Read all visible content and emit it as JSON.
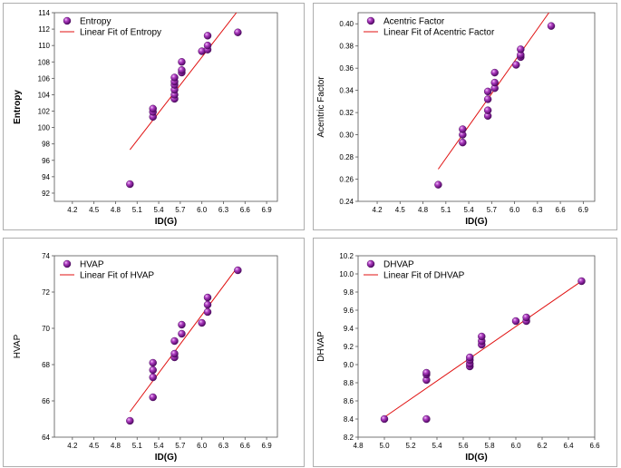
{
  "colors": {
    "marker": "#7a0f8c",
    "marker_highlight": "#e7a9f2",
    "fit_line": "#e01010",
    "frame": "#555555",
    "panel_border": "#9a9a9a"
  },
  "chart_data": [
    {
      "type": "scatter",
      "panel": "top-left",
      "xlabel": "ID(G)",
      "ylabel": "Entropy",
      "ylabel_bold": true,
      "xlim": [
        3.95,
        7.05
      ],
      "ylim": [
        91,
        114
      ],
      "xticks": [
        "4.2",
        "4.5",
        "4.8",
        "5.1",
        "5.4",
        "5.7",
        "6.0",
        "6.3",
        "6.6",
        "6.9"
      ],
      "yticks": [
        "92",
        "94",
        "96",
        "98",
        "100",
        "102",
        "104",
        "106",
        "108",
        "110",
        "112",
        "114"
      ],
      "legend": {
        "position": "top-left",
        "points_label": "Entropy",
        "line_label": "Linear Fit of Entropy"
      },
      "points": [
        [
          5.0,
          93.1
        ],
        [
          5.32,
          101.3
        ],
        [
          5.32,
          101.9
        ],
        [
          5.32,
          102.3
        ],
        [
          5.62,
          103.5
        ],
        [
          5.62,
          104.0
        ],
        [
          5.62,
          104.6
        ],
        [
          5.62,
          105.2
        ],
        [
          5.62,
          105.6
        ],
        [
          5.62,
          106.1
        ],
        [
          5.72,
          106.7
        ],
        [
          5.72,
          107.0
        ],
        [
          5.72,
          108.0
        ],
        [
          6.0,
          109.3
        ],
        [
          6.08,
          109.5
        ],
        [
          6.08,
          110.0
        ],
        [
          6.08,
          111.2
        ],
        [
          6.5,
          111.6
        ]
      ],
      "fit": [
        [
          5.0,
          97.3
        ],
        [
          6.48,
          114.0
        ]
      ]
    },
    {
      "type": "scatter",
      "panel": "top-right",
      "xlabel": "ID(G)",
      "ylabel": "Acentric Factor",
      "ylabel_bold": false,
      "xlim": [
        3.95,
        7.05
      ],
      "ylim": [
        0.24,
        0.41
      ],
      "xticks": [
        "4.2",
        "4.5",
        "4.8",
        "5.1",
        "5.4",
        "5.7",
        "6.0",
        "6.3",
        "6.6",
        "6.9"
      ],
      "yticks": [
        "0.24",
        "0.26",
        "0.28",
        "0.30",
        "0.32",
        "0.34",
        "0.36",
        "0.38",
        "0.40"
      ],
      "legend": {
        "position": "top-left",
        "points_label": "Acentric Factor",
        "line_label": "Linear Fit of Acentric Factor"
      },
      "points": [
        [
          5.0,
          0.255
        ],
        [
          5.32,
          0.293
        ],
        [
          5.32,
          0.3
        ],
        [
          5.32,
          0.305
        ],
        [
          5.65,
          0.317
        ],
        [
          5.65,
          0.322
        ],
        [
          5.65,
          0.332
        ],
        [
          5.65,
          0.339
        ],
        [
          5.74,
          0.342
        ],
        [
          5.74,
          0.347
        ],
        [
          5.74,
          0.356
        ],
        [
          6.02,
          0.363
        ],
        [
          6.08,
          0.37
        ],
        [
          6.08,
          0.372
        ],
        [
          6.08,
          0.377
        ],
        [
          6.48,
          0.398
        ]
      ],
      "fit": [
        [
          5.0,
          0.269
        ],
        [
          6.45,
          0.41
        ]
      ]
    },
    {
      "type": "scatter",
      "panel": "bottom-left",
      "xlabel": "ID(G)",
      "ylabel": "HVAP",
      "ylabel_bold": false,
      "xlim": [
        3.95,
        7.05
      ],
      "ylim": [
        64,
        74
      ],
      "xticks": [
        "4.2",
        "4.5",
        "4.8",
        "5.1",
        "5.4",
        "5.7",
        "6.0",
        "6.3",
        "6.6",
        "6.9"
      ],
      "yticks": [
        "64",
        "66",
        "68",
        "70",
        "72",
        "74"
      ],
      "legend": {
        "position": "top-left",
        "points_label": "HVAP",
        "line_label": "Linear Fit of HVAP"
      },
      "points": [
        [
          5.0,
          64.9
        ],
        [
          5.32,
          66.2
        ],
        [
          5.32,
          67.3
        ],
        [
          5.32,
          67.7
        ],
        [
          5.32,
          68.1
        ],
        [
          5.62,
          68.4
        ],
        [
          5.62,
          68.6
        ],
        [
          5.62,
          69.3
        ],
        [
          5.72,
          69.7
        ],
        [
          5.72,
          70.2
        ],
        [
          6.0,
          70.3
        ],
        [
          6.08,
          70.9
        ],
        [
          6.08,
          71.3
        ],
        [
          6.08,
          71.7
        ],
        [
          6.5,
          73.2
        ]
      ],
      "fit": [
        [
          5.0,
          65.4
        ],
        [
          6.5,
          73.4
        ]
      ]
    },
    {
      "type": "scatter",
      "panel": "bottom-right",
      "xlabel": "ID(G)",
      "ylabel": "DHVAP",
      "ylabel_bold": false,
      "xlim": [
        4.8,
        6.6
      ],
      "ylim": [
        8.2,
        10.2
      ],
      "xticks": [
        "4.8",
        "5.0",
        "5.2",
        "5.4",
        "5.6",
        "5.8",
        "6.0",
        "6.2",
        "6.4",
        "6.6"
      ],
      "yticks": [
        "8.2",
        "8.4",
        "8.6",
        "8.8",
        "9.0",
        "9.2",
        "9.4",
        "9.6",
        "9.8",
        "10.0",
        "10.2"
      ],
      "legend": {
        "position": "top-left",
        "points_label": "DHVAP",
        "line_label": "Linear Fit of DHVAP"
      },
      "points": [
        [
          5.0,
          8.4
        ],
        [
          5.32,
          8.4
        ],
        [
          5.32,
          8.83
        ],
        [
          5.32,
          8.89
        ],
        [
          5.32,
          8.91
        ],
        [
          5.65,
          8.98
        ],
        [
          5.65,
          9.01
        ],
        [
          5.65,
          9.05
        ],
        [
          5.65,
          9.08
        ],
        [
          5.74,
          9.22
        ],
        [
          5.74,
          9.26
        ],
        [
          5.74,
          9.31
        ],
        [
          6.0,
          9.48
        ],
        [
          6.08,
          9.48
        ],
        [
          6.08,
          9.52
        ],
        [
          6.5,
          9.92
        ]
      ],
      "fit": [
        [
          5.0,
          8.42
        ],
        [
          6.5,
          9.92
        ]
      ]
    }
  ]
}
